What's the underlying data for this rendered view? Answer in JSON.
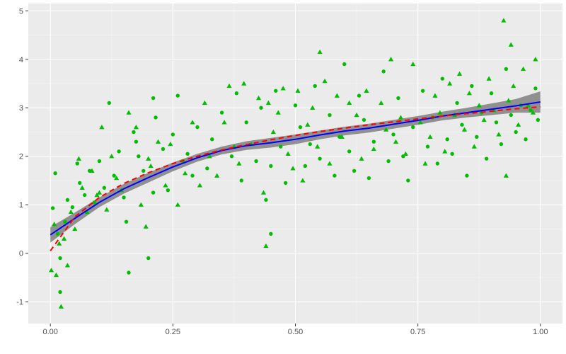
{
  "chart_data": {
    "type": "scatter",
    "title": "",
    "xlabel": "",
    "ylabel": "",
    "xlim": [
      -0.045,
      1.045
    ],
    "ylim": [
      -1.45,
      5.15
    ],
    "xticks": [
      0,
      0.25,
      0.5,
      0.75,
      1
    ],
    "xtick_labels": [
      "0.00",
      "0.25",
      "0.50",
      "0.75",
      "1.00"
    ],
    "yticks": [
      -1,
      0,
      1,
      2,
      3,
      4,
      5
    ],
    "ytick_labels": [
      "-1",
      "0",
      "1",
      "2",
      "3",
      "4",
      "5"
    ],
    "grid": true,
    "legend": "none",
    "colors": {
      "panel": "#ebebeb",
      "grid_major": "#ffffff",
      "points": "#00bf00",
      "smooth_line": "#0000ff",
      "dashed_line": "#ff0000",
      "band": "#808080"
    },
    "smooth": {
      "x": [
        0,
        0.05,
        0.1,
        0.15,
        0.2,
        0.25,
        0.3,
        0.35,
        0.4,
        0.45,
        0.5,
        0.55,
        0.6,
        0.65,
        0.7,
        0.75,
        0.8,
        0.85,
        0.9,
        0.95,
        1.0
      ],
      "y": [
        0.38,
        0.72,
        1.05,
        1.33,
        1.56,
        1.78,
        1.97,
        2.12,
        2.22,
        2.28,
        2.35,
        2.44,
        2.52,
        2.58,
        2.66,
        2.74,
        2.83,
        2.9,
        2.97,
        3.04,
        3.12
      ],
      "band_lower": [
        0.22,
        0.6,
        0.95,
        1.23,
        1.46,
        1.69,
        1.89,
        2.04,
        2.13,
        2.18,
        2.25,
        2.35,
        2.43,
        2.49,
        2.57,
        2.65,
        2.74,
        2.8,
        2.85,
        2.9,
        2.9
      ],
      "band_upper": [
        0.54,
        0.84,
        1.15,
        1.43,
        1.66,
        1.87,
        2.05,
        2.2,
        2.31,
        2.38,
        2.45,
        2.53,
        2.61,
        2.67,
        2.75,
        2.83,
        2.92,
        3.0,
        3.09,
        3.18,
        3.34
      ]
    },
    "dashed": {
      "x": [
        0,
        0.05,
        0.1,
        0.15,
        0.2,
        0.25,
        0.3,
        0.35,
        0.4,
        0.45,
        0.5,
        0.55,
        0.6,
        0.65,
        0.7,
        0.75,
        0.8,
        0.85,
        0.9,
        0.95,
        1.0
      ],
      "y": [
        0.05,
        0.75,
        1.15,
        1.44,
        1.66,
        1.85,
        2.0,
        2.13,
        2.24,
        2.34,
        2.43,
        2.51,
        2.58,
        2.65,
        2.71,
        2.77,
        2.83,
        2.88,
        2.93,
        2.98,
        3.02
      ]
    },
    "series": [
      {
        "shape": "circle",
        "x": [
          0.005,
          0.01,
          0.015,
          0.02,
          0.03,
          0.035,
          0.045,
          0.055,
          0.06,
          0.07,
          0.08,
          0.09,
          0.1,
          0.11,
          0.12,
          0.13,
          0.14,
          0.15,
          0.155,
          0.17,
          0.175,
          0.18,
          0.19,
          0.2,
          0.21,
          0.215,
          0.23,
          0.24,
          0.25,
          0.26,
          0.27,
          0.28,
          0.29,
          0.3,
          0.32,
          0.33,
          0.35,
          0.37,
          0.38,
          0.39,
          0.4,
          0.42,
          0.43,
          0.44,
          0.45,
          0.46,
          0.47,
          0.48,
          0.5,
          0.51,
          0.52,
          0.53,
          0.54,
          0.55,
          0.57,
          0.58,
          0.59,
          0.6,
          0.61,
          0.62,
          0.63,
          0.64,
          0.65,
          0.66,
          0.68,
          0.69,
          0.7,
          0.71,
          0.72,
          0.73,
          0.74,
          0.76,
          0.77,
          0.78,
          0.79,
          0.8,
          0.81,
          0.82,
          0.83,
          0.84,
          0.85,
          0.86,
          0.87,
          0.88,
          0.89,
          0.9,
          0.91,
          0.92,
          0.93,
          0.94,
          0.95,
          0.96,
          0.97,
          0.98,
          0.99,
          0.995,
          0.45,
          0.21,
          0.16,
          0.02
        ],
        "y": [
          0.93,
          1.65,
          0.4,
          -0.8,
          0.65,
          1.1,
          0.95,
          1.85,
          1.45,
          1.2,
          1.7,
          1.05,
          1.9,
          1.35,
          3.1,
          1.6,
          2.1,
          1.15,
          0.65,
          2.5,
          2.3,
          2.0,
          1.7,
          -0.1,
          1.25,
          2.8,
          2.15,
          1.3,
          2.45,
          3.25,
          1.9,
          2.05,
          1.6,
          2.6,
          1.75,
          2.35,
          2.9,
          2.0,
          3.3,
          1.5,
          2.7,
          1.9,
          3.0,
          1.1,
          1.8,
          3.35,
          2.2,
          1.45,
          3.05,
          2.6,
          1.8,
          2.25,
          3.45,
          1.95,
          2.85,
          1.6,
          2.4,
          3.9,
          2.1,
          1.7,
          3.25,
          2.75,
          1.55,
          2.3,
          3.75,
          1.9,
          2.45,
          3.2,
          2.0,
          1.5,
          2.6,
          3.35,
          2.2,
          2.8,
          1.85,
          3.6,
          2.35,
          2.05,
          3.1,
          2.65,
          1.6,
          3.45,
          2.4,
          2.9,
          1.95,
          3.3,
          2.7,
          2.25,
          3.8,
          2.85,
          2.5,
          3.05,
          2.35,
          2.95,
          3.4,
          2.75,
          0.4,
          3.2,
          -0.4,
          -0.1
        ]
      },
      {
        "shape": "triangle",
        "x": [
          0.002,
          0.008,
          0.012,
          0.018,
          0.022,
          0.028,
          0.035,
          0.042,
          0.05,
          0.058,
          0.065,
          0.075,
          0.085,
          0.095,
          0.105,
          0.115,
          0.125,
          0.135,
          0.145,
          0.16,
          0.175,
          0.185,
          0.195,
          0.205,
          0.22,
          0.235,
          0.245,
          0.26,
          0.275,
          0.29,
          0.305,
          0.315,
          0.325,
          0.34,
          0.355,
          0.365,
          0.375,
          0.385,
          0.395,
          0.41,
          0.425,
          0.435,
          0.445,
          0.455,
          0.465,
          0.475,
          0.485,
          0.495,
          0.505,
          0.515,
          0.525,
          0.535,
          0.545,
          0.56,
          0.57,
          0.585,
          0.595,
          0.61,
          0.625,
          0.635,
          0.645,
          0.66,
          0.675,
          0.685,
          0.695,
          0.705,
          0.715,
          0.725,
          0.74,
          0.755,
          0.765,
          0.775,
          0.785,
          0.795,
          0.805,
          0.815,
          0.825,
          0.835,
          0.845,
          0.855,
          0.865,
          0.875,
          0.885,
          0.895,
          0.905,
          0.915,
          0.925,
          0.935,
          0.945,
          0.955,
          0.965,
          0.975,
          0.985,
          0.99,
          0.2,
          0.44,
          0.55,
          0.93,
          0.94,
          0.1
        ],
        "y": [
          -0.35,
          0.6,
          -0.45,
          0.2,
          -1.1,
          0.3,
          -0.25,
          0.85,
          0.5,
          1.95,
          1.35,
          0.85,
          1.7,
          1.2,
          2.6,
          0.9,
          2.0,
          1.55,
          1.3,
          2.9,
          2.6,
          1.0,
          0.55,
          1.8,
          2.3,
          1.4,
          2.25,
          1.0,
          1.65,
          2.7,
          1.4,
          3.1,
          2.0,
          1.6,
          2.7,
          3.45,
          2.2,
          1.85,
          3.5,
          2.25,
          3.2,
          1.25,
          3.1,
          2.5,
          2.9,
          3.4,
          2.05,
          1.75,
          3.35,
          1.5,
          2.65,
          3.0,
          2.2,
          3.55,
          1.85,
          3.25,
          2.4,
          3.1,
          2.85,
          1.95,
          3.35,
          2.15,
          3.1,
          2.55,
          4.0,
          2.3,
          2.8,
          2.05,
          3.9,
          2.7,
          1.85,
          2.4,
          3.25,
          2.9,
          2.1,
          3.5,
          2.85,
          3.7,
          2.55,
          3.3,
          2.2,
          3.05,
          2.75,
          3.6,
          2.95,
          2.45,
          4.8,
          3.15,
          3.45,
          2.65,
          3.8,
          3.05,
          2.9,
          4.0,
          1.95,
          0.15,
          4.15,
          1.6,
          4.3,
          1.25
        ],
        "y_extra_note": ""
      }
    ]
  }
}
